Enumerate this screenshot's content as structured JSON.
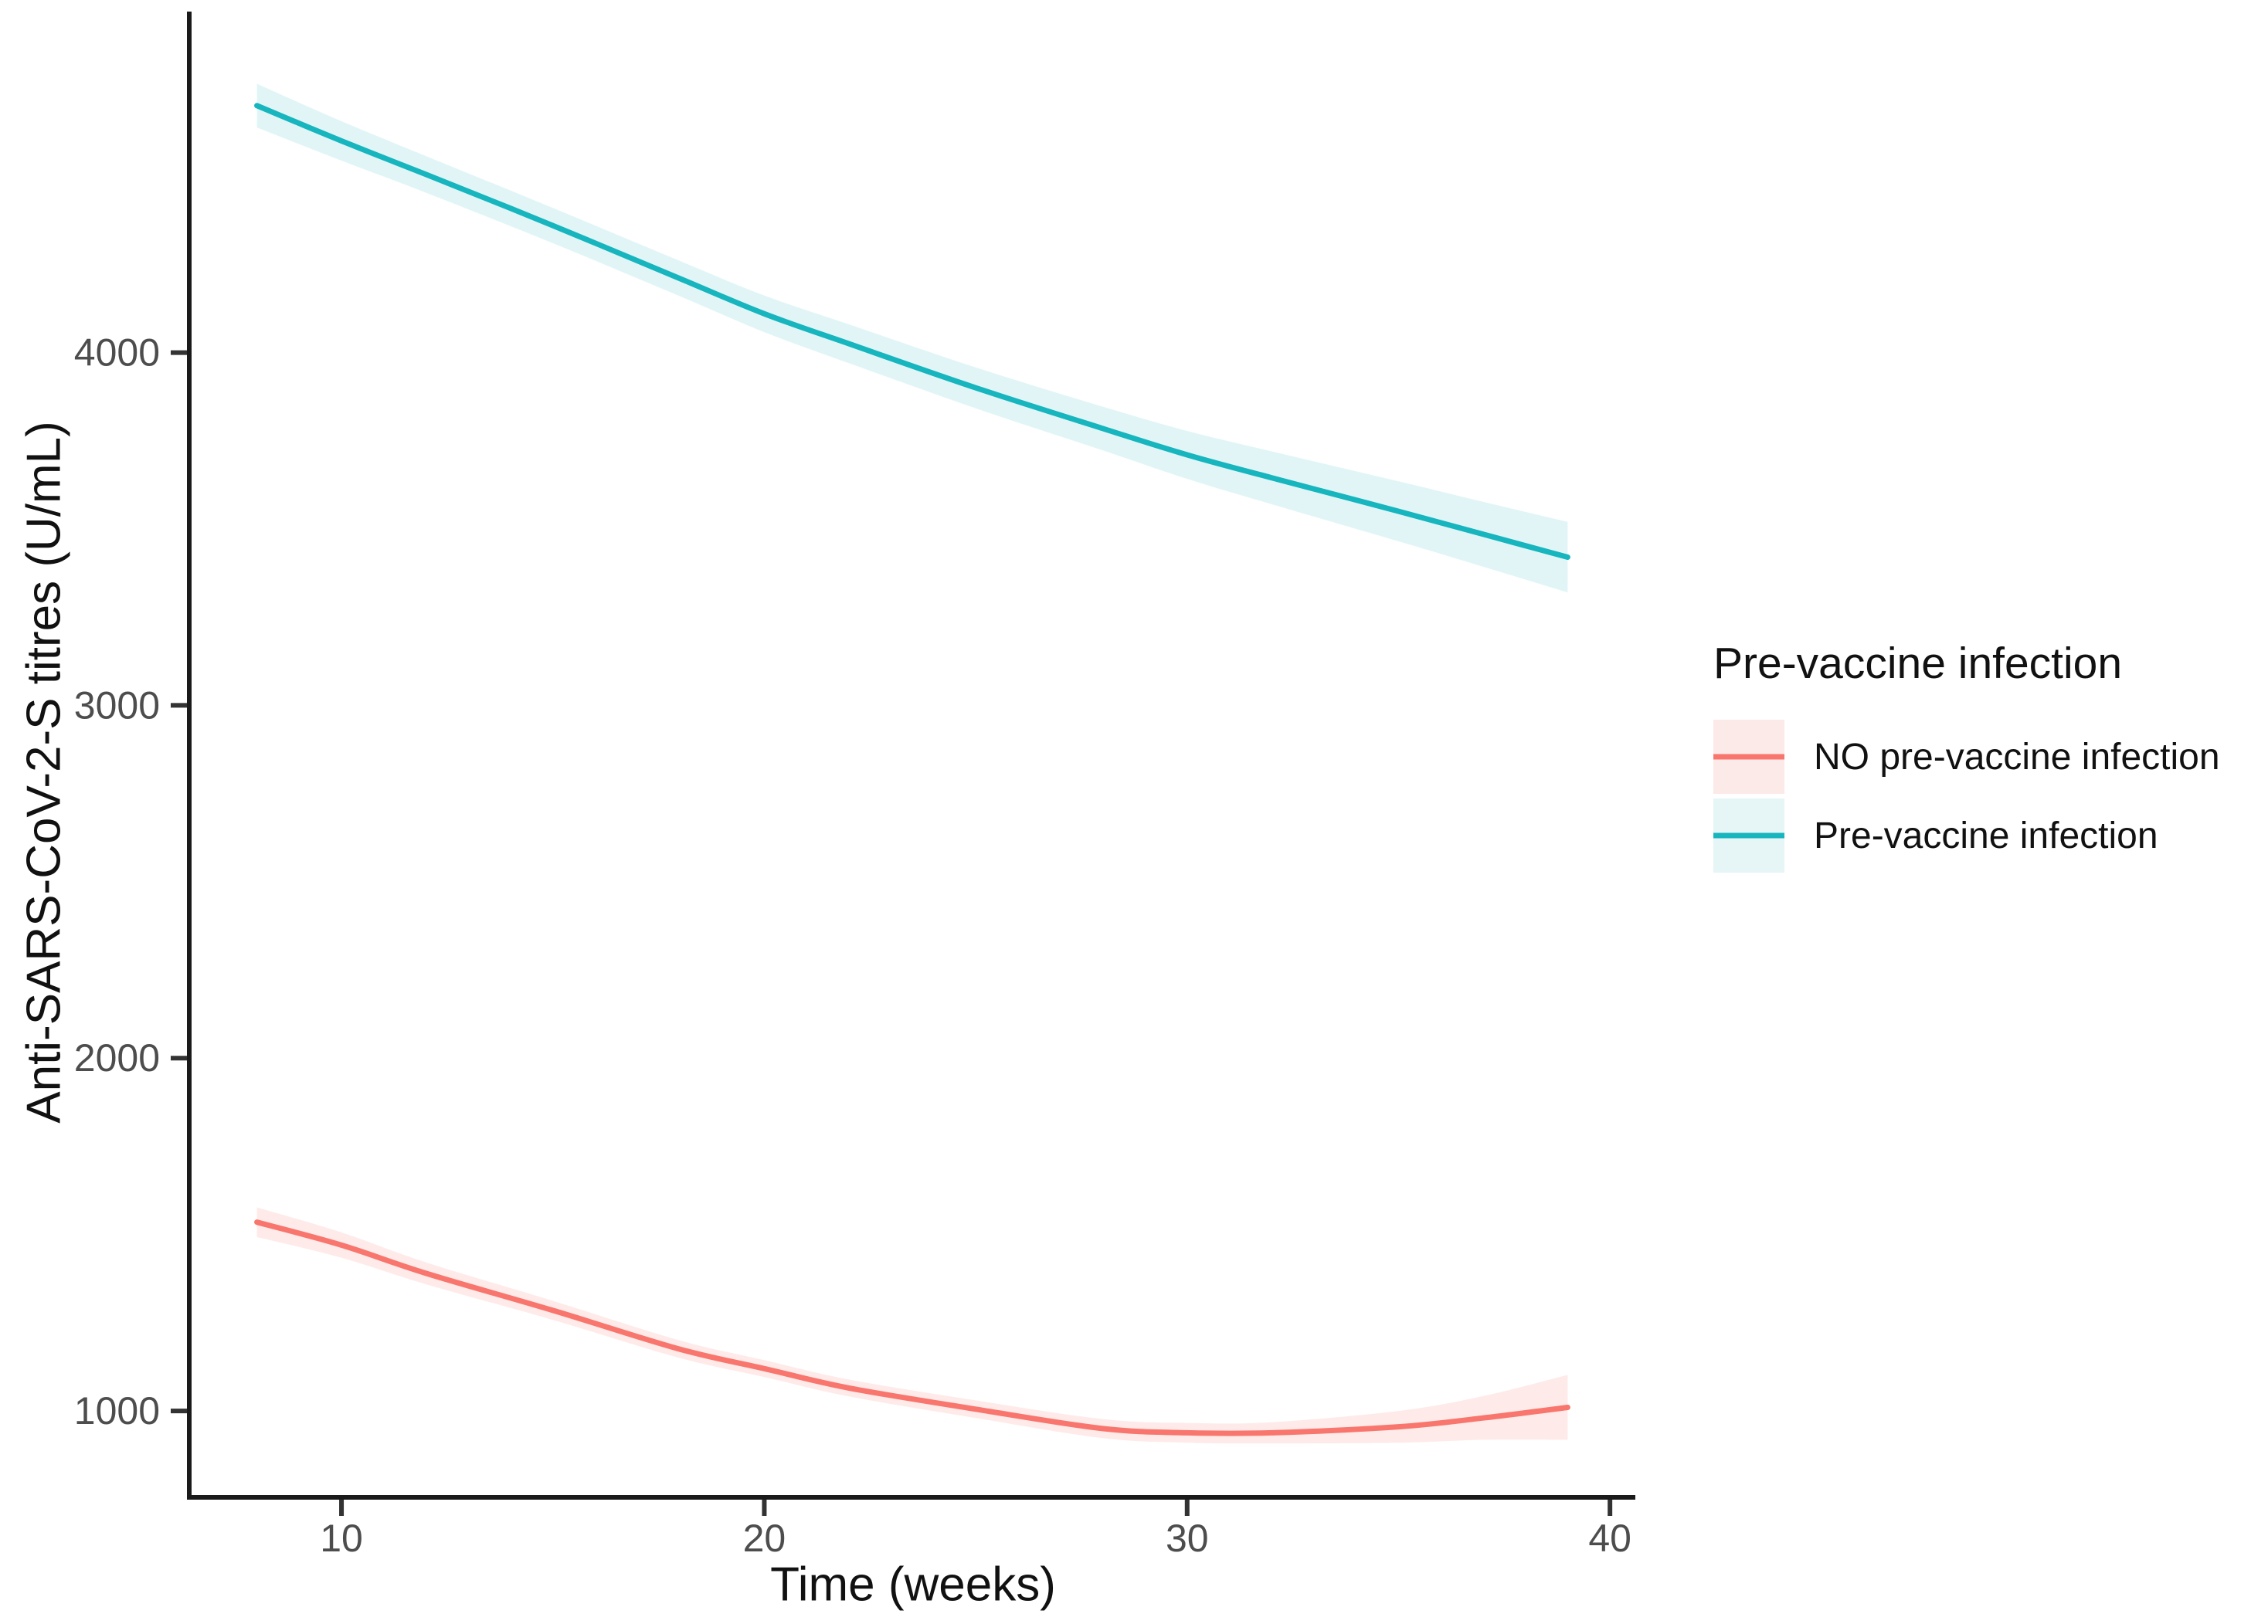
{
  "axes": {
    "x_title": "Time (weeks)",
    "y_title": "Anti-SARS-CoV-2-S titres (U/mL)"
  },
  "legend": {
    "title": "Pre-vaccine infection",
    "items": [
      {
        "label": "NO pre-vaccine infection",
        "line_color": "#F8766D",
        "fill_color": "#FCEAE8"
      },
      {
        "label": "Pre-vaccine infection",
        "line_color": "#17B5BE",
        "fill_color": "#E6F5F6"
      }
    ]
  },
  "chart_data": {
    "type": "line",
    "title": "",
    "xlabel": "Time (weeks)",
    "ylabel": "Anti-SARS-CoV-2-S titres (U/mL)",
    "x_ticks": [
      10,
      20,
      30,
      40
    ],
    "y_ticks": [
      1000,
      2000,
      3000,
      4000
    ],
    "xlim": [
      6.4,
      40.6
    ],
    "ylim": [
      755,
      4960
    ],
    "grid": false,
    "legend_position": "right",
    "x": [
      8,
      10,
      12,
      15,
      18,
      20,
      22,
      25,
      28,
      30,
      32,
      35,
      37,
      39
    ],
    "series": [
      {
        "name": "NO pre-vaccine infection",
        "color": "#F8766D",
        "fill": "rgba(248,118,109,0.15)",
        "values": [
          1535,
          1470,
          1390,
          1285,
          1175,
          1120,
          1065,
          1005,
          950,
          938,
          938,
          955,
          980,
          1010
        ],
        "ci_upper": [
          1577,
          1506,
          1421,
          1312,
          1200,
          1144,
          1089,
          1030,
          977,
          966,
          968,
          1000,
          1042,
          1102
        ],
        "ci_lower": [
          1493,
          1434,
          1359,
          1258,
          1150,
          1096,
          1041,
          980,
          923,
          910,
          908,
          910,
          918,
          918
        ]
      },
      {
        "name": "Pre-vaccine infection",
        "color": "#17B5BE",
        "fill": "rgba(23,181,190,0.13)",
        "values": [
          4700,
          4600,
          4505,
          4360,
          4210,
          4110,
          4025,
          3900,
          3785,
          3710,
          3645,
          3550,
          3485,
          3420
        ],
        "ci_upper": [
          4762,
          4656,
          4557,
          4410,
          4260,
          4162,
          4080,
          3958,
          3847,
          3778,
          3720,
          3635,
          3577,
          3520
        ],
        "ci_lower": [
          4638,
          4544,
          4453,
          4310,
          4160,
          4058,
          3970,
          3842,
          3723,
          3642,
          3570,
          3465,
          3393,
          3320
        ]
      }
    ],
    "axis_style": {
      "axis_line_color": "#1a1a1a",
      "tick_mark_color": "#333333",
      "tick_label_color": "#4d4d4d"
    }
  }
}
